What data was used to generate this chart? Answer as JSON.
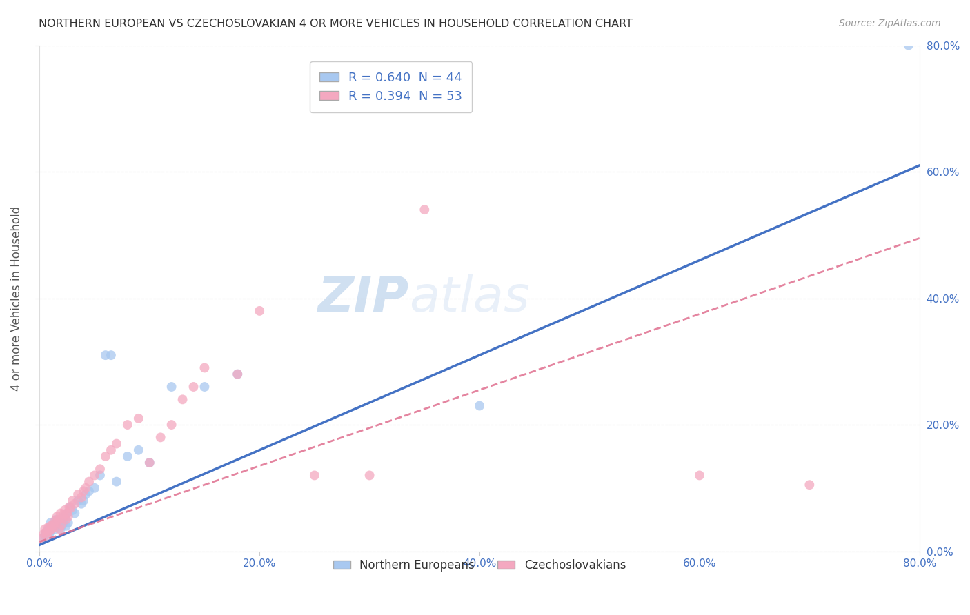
{
  "title": "NORTHERN EUROPEAN VS CZECHOSLOVAKIAN 4 OR MORE VEHICLES IN HOUSEHOLD CORRELATION CHART",
  "source": "Source: ZipAtlas.com",
  "ylabel": "4 or more Vehicles in Household",
  "xlim": [
    0.0,
    0.8
  ],
  "ylim": [
    0.0,
    0.8
  ],
  "x_ticks": [
    0.0,
    0.2,
    0.4,
    0.6,
    0.8
  ],
  "y_ticks": [
    0.0,
    0.2,
    0.4,
    0.6,
    0.8
  ],
  "x_tick_labels": [
    "0.0%",
    "20.0%",
    "40.0%",
    "60.0%",
    "80.0%"
  ],
  "y_tick_labels": [
    "0.0%",
    "20.0%",
    "40.0%",
    "60.0%",
    "80.0%"
  ],
  "legend1_label": "R = 0.640  N = 44",
  "legend2_label": "R = 0.394  N = 53",
  "series1_color": "#A8C8F0",
  "series2_color": "#F4A8C0",
  "trendline1_color": "#4472C4",
  "trendline2_color": "#E07090",
  "watermark_color": "#C8D8F0",
  "ne_x": [
    0.003,
    0.005,
    0.006,
    0.008,
    0.009,
    0.01,
    0.01,
    0.012,
    0.013,
    0.014,
    0.015,
    0.015,
    0.016,
    0.017,
    0.018,
    0.019,
    0.02,
    0.021,
    0.022,
    0.023,
    0.024,
    0.025,
    0.026,
    0.028,
    0.03,
    0.032,
    0.035,
    0.038,
    0.04,
    0.042,
    0.045,
    0.05,
    0.055,
    0.06,
    0.065,
    0.07,
    0.08,
    0.09,
    0.1,
    0.12,
    0.15,
    0.18,
    0.4,
    0.79
  ],
  "ne_y": [
    0.02,
    0.025,
    0.03,
    0.035,
    0.028,
    0.032,
    0.045,
    0.038,
    0.04,
    0.035,
    0.042,
    0.05,
    0.038,
    0.045,
    0.048,
    0.035,
    0.05,
    0.042,
    0.048,
    0.055,
    0.04,
    0.06,
    0.045,
    0.07,
    0.065,
    0.06,
    0.08,
    0.075,
    0.08,
    0.09,
    0.095,
    0.1,
    0.12,
    0.31,
    0.31,
    0.11,
    0.15,
    0.16,
    0.14,
    0.26,
    0.26,
    0.28,
    0.23,
    0.8
  ],
  "cz_x": [
    0.002,
    0.004,
    0.005,
    0.006,
    0.007,
    0.008,
    0.009,
    0.01,
    0.011,
    0.012,
    0.013,
    0.014,
    0.015,
    0.016,
    0.017,
    0.018,
    0.019,
    0.02,
    0.021,
    0.022,
    0.023,
    0.024,
    0.025,
    0.026,
    0.027,
    0.028,
    0.03,
    0.032,
    0.035,
    0.038,
    0.04,
    0.042,
    0.045,
    0.05,
    0.055,
    0.06,
    0.065,
    0.07,
    0.08,
    0.09,
    0.1,
    0.11,
    0.12,
    0.13,
    0.14,
    0.15,
    0.18,
    0.2,
    0.25,
    0.3,
    0.35,
    0.6,
    0.7
  ],
  "cz_y": [
    0.02,
    0.028,
    0.035,
    0.03,
    0.025,
    0.038,
    0.032,
    0.04,
    0.035,
    0.042,
    0.038,
    0.048,
    0.045,
    0.055,
    0.05,
    0.035,
    0.06,
    0.042,
    0.052,
    0.058,
    0.065,
    0.05,
    0.06,
    0.055,
    0.07,
    0.068,
    0.08,
    0.075,
    0.09,
    0.085,
    0.095,
    0.1,
    0.11,
    0.12,
    0.13,
    0.15,
    0.16,
    0.17,
    0.2,
    0.21,
    0.14,
    0.18,
    0.2,
    0.24,
    0.26,
    0.29,
    0.28,
    0.38,
    0.12,
    0.12,
    0.54,
    0.12,
    0.105
  ],
  "background_color": "#FFFFFF",
  "grid_color": "#CCCCCC",
  "trendline1_intercept": 0.01,
  "trendline1_slope": 0.75,
  "trendline2_intercept": 0.015,
  "trendline2_slope": 0.6
}
